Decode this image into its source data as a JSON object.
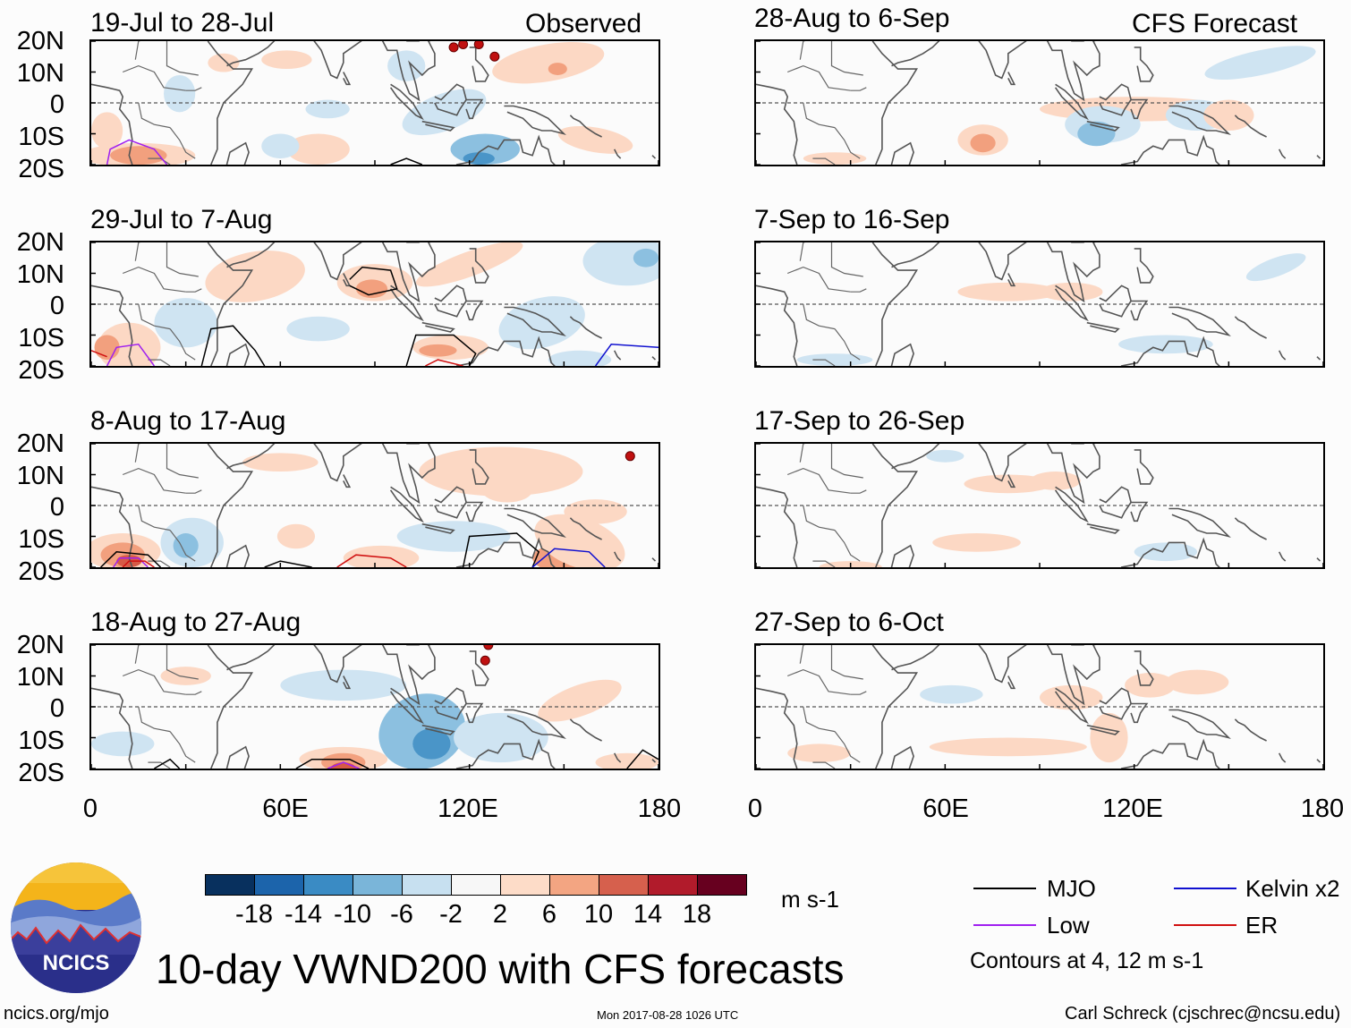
{
  "header": {
    "observed_label": "Observed",
    "forecast_label": "CFS Forecast"
  },
  "panels_left": [
    {
      "title": "19-Jul to 28-Jul"
    },
    {
      "title": "29-Jul to 7-Aug"
    },
    {
      "title": "8-Aug to 17-Aug"
    },
    {
      "title": "18-Aug to 27-Aug"
    }
  ],
  "panels_right": [
    {
      "title": "28-Aug to 6-Sep"
    },
    {
      "title": "7-Sep to 16-Sep"
    },
    {
      "title": "17-Sep to 26-Sep"
    },
    {
      "title": "27-Sep to 6-Oct"
    }
  ],
  "axes": {
    "lat_labels": [
      "20N",
      "10N",
      "0",
      "10S",
      "20S"
    ],
    "lon_labels": [
      "0",
      "60E",
      "120E",
      "180"
    ]
  },
  "colorbar": {
    "ticks": [
      "-18",
      "-14",
      "-10",
      "-6",
      "-2",
      "2",
      "6",
      "10",
      "14",
      "18"
    ],
    "units": "m s-1",
    "colors": [
      "#08305e",
      "#1c64ab",
      "#3a8bc4",
      "#7ab5d9",
      "#c7e0f0",
      "#f7f7f7",
      "#fddcc8",
      "#f3a582",
      "#d6604d",
      "#b11b2b",
      "#67001f"
    ]
  },
  "legend": {
    "mjo": "MJO",
    "kelvin": "Kelvin x2",
    "low": "Low",
    "er": "ER",
    "contours_note": "Contours at 4, 12 m s-1",
    "colors": {
      "mjo": "#000000",
      "kelvin": "#1010d0",
      "low": "#a020f0",
      "er": "#d01010"
    }
  },
  "footer": {
    "logo_text": "NCICS",
    "main_title": "10-day VWND200 with CFS forecasts",
    "url": "ncics.org/mjo",
    "timestamp": "Mon 2017-08-28 1026 UTC",
    "credit": "Carl Schreck (cjschrec@ncsu.edu)"
  },
  "chart_data": {
    "type": "heatmap",
    "variable": "200-hPa meridional wind anomaly (VWND200), 10-day means",
    "units": "m s-1",
    "x_range": [
      0,
      180
    ],
    "y_range": [
      -20,
      20
    ],
    "x_ticks": [
      0,
      60,
      120,
      180
    ],
    "y_ticks": [
      20,
      10,
      0,
      -10,
      -20
    ],
    "levels": [
      -18,
      -14,
      -10,
      -6,
      -2,
      2,
      6,
      10,
      14,
      18
    ],
    "contour_levels": [
      4,
      12
    ]
  }
}
